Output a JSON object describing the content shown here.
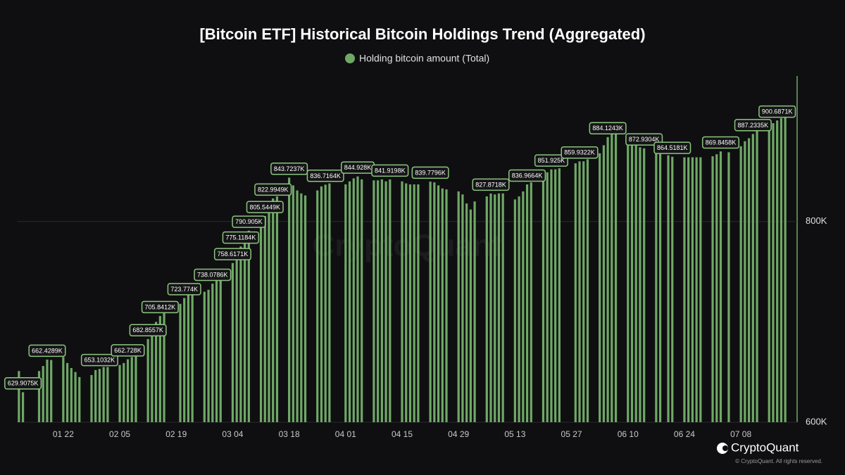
{
  "chart_data": {
    "type": "bar",
    "title": "[Bitcoin ETF] Historical Bitcoin Holdings Trend (Aggregated)",
    "branding": {
      "logo": "CryptoQuant",
      "copyright": "© CryptoQuant. All rights reserved."
    },
    "categories": [
      null,
      null,
      null,
      null,
      null,
      null,
      null,
      null,
      null,
      null,
      null,
      "01 22",
      null,
      null,
      null,
      null,
      null,
      null,
      null,
      null,
      null,
      null,
      null,
      null,
      null,
      "02 05",
      null,
      null,
      null,
      null,
      null,
      null,
      null,
      null,
      null,
      null,
      null,
      null,
      null,
      "02 19",
      null,
      null,
      null,
      null,
      null,
      null,
      null,
      null,
      null,
      null,
      null,
      null,
      null,
      "03 04",
      null,
      null,
      null,
      null,
      null,
      null,
      null,
      null,
      null,
      null,
      null,
      null,
      null,
      "03 18",
      null,
      null,
      null,
      null,
      null,
      null,
      null,
      null,
      null,
      null,
      null,
      null,
      null,
      "04 01",
      null,
      null,
      null,
      null,
      null,
      null,
      null,
      null,
      null,
      null,
      null,
      null,
      null,
      "04 15",
      null,
      null,
      null,
      null,
      null,
      null,
      null,
      null,
      null,
      null,
      null,
      null,
      null,
      "04 29",
      null,
      null,
      null,
      null,
      null,
      null,
      null,
      null,
      null,
      null,
      null,
      null,
      null,
      "05 13",
      null,
      null,
      null,
      null,
      null,
      null,
      null,
      null,
      null,
      null,
      null,
      null,
      null,
      "05 27",
      null,
      null,
      null,
      null,
      null,
      null,
      null,
      null,
      null,
      null,
      null,
      null,
      null,
      "06 10",
      null,
      null,
      null,
      null,
      null,
      null,
      null,
      null,
      null,
      null,
      null,
      null,
      null,
      "06 24",
      null,
      null,
      null,
      null,
      null,
      null,
      null,
      null,
      null,
      null,
      null,
      null,
      null,
      "07 08",
      null,
      null,
      null,
      null,
      null,
      null,
      null,
      null,
      null,
      null,
      null
    ],
    "series": [
      {
        "name": "Holding bitcoin amount (Total)",
        "color": "#6fa866",
        "values": [
          651000,
          629907.5,
          null,
          null,
          null,
          651000,
          656000,
          662428.9,
          662000,
          null,
          null,
          665000,
          659000,
          654000,
          650000,
          645000,
          null,
          null,
          647000,
          652000,
          653103.2,
          655000,
          655000,
          null,
          null,
          657000,
          659000,
          662728,
          665000,
          672000,
          null,
          null,
          682855.7,
          690000,
          700000,
          705841.2,
          712000,
          null,
          null,
          null,
          718000,
          723774,
          727000,
          730000,
          null,
          null,
          730000,
          732000,
          738078.6,
          745000,
          752000,
          null,
          null,
          758617.1,
          765000,
          775118.4,
          782000,
          790905,
          null,
          null,
          795000,
          805544.9,
          812000,
          822994.9,
          825000,
          null,
          null,
          843723.7,
          836000,
          831000,
          828000,
          826000,
          null,
          null,
          831000,
          835000,
          836716.4,
          838000,
          null,
          null,
          null,
          837000,
          840000,
          843000,
          844928,
          842000,
          null,
          null,
          841000,
          841000,
          842000,
          840000,
          841919.8,
          null,
          null,
          840000,
          838000,
          837000,
          837000,
          837000,
          null,
          null,
          839779.6,
          839000,
          836000,
          833000,
          832000,
          null,
          null,
          830000,
          827000,
          818000,
          812000,
          820000,
          null,
          null,
          825000,
          827871.8,
          827000,
          828000,
          828000,
          null,
          null,
          822000,
          825000,
          830000,
          836966.4,
          839000,
          null,
          null,
          845000,
          849000,
          851925,
          852000,
          853000,
          null,
          null,
          null,
          858000,
          859932.2,
          860000,
          862000,
          null,
          null,
          868000,
          876000,
          884124.3,
          887000,
          887000,
          null,
          null,
          882000,
          878000,
          876000,
          874000,
          872930.4,
          null,
          null,
          872000,
          871000,
          null,
          866000,
          864518.1,
          null,
          null,
          864000,
          864000,
          864000,
          864000,
          864000,
          null,
          null,
          865000,
          867000,
          869845.8,
          null,
          869000,
          null,
          null,
          875000,
          880000,
          883000,
          887233.5,
          890000,
          null,
          null,
          895000,
          898000,
          900687.1,
          903000,
          906000
        ],
        "value_labels": [
          null,
          "629.9075K",
          null,
          null,
          null,
          null,
          null,
          "662.4289K",
          null,
          null,
          null,
          null,
          null,
          null,
          null,
          null,
          null,
          null,
          null,
          null,
          "653.1032K",
          null,
          null,
          null,
          null,
          null,
          null,
          "662.728K",
          null,
          null,
          null,
          null,
          "682.8557K",
          null,
          null,
          "705.8412K",
          null,
          null,
          null,
          null,
          null,
          "723.774K",
          null,
          null,
          null,
          null,
          null,
          null,
          "738.0786K",
          null,
          null,
          null,
          null,
          "758.6171K",
          null,
          "775.1184K",
          null,
          "790.905K",
          null,
          null,
          null,
          "805.5449K",
          null,
          "822.9949K",
          null,
          null,
          null,
          "843.7237K",
          null,
          null,
          null,
          null,
          null,
          null,
          null,
          null,
          "836.7164K",
          null,
          null,
          null,
          null,
          null,
          null,
          null,
          "844.928K",
          null,
          null,
          null,
          null,
          null,
          null,
          null,
          "841.9198K",
          null,
          null,
          null,
          null,
          null,
          null,
          null,
          null,
          null,
          "839.7796K",
          null,
          null,
          null,
          null,
          null,
          null,
          null,
          null,
          null,
          null,
          null,
          null,
          null,
          null,
          "827.8718K",
          null,
          null,
          null,
          null,
          null,
          null,
          null,
          null,
          "836.9664K",
          null,
          null,
          null,
          null,
          null,
          "851.925K",
          null,
          null,
          null,
          null,
          null,
          null,
          "859.9322K",
          null,
          null,
          null,
          null,
          null,
          null,
          "884.1243K",
          null,
          null,
          null,
          null,
          null,
          null,
          null,
          null,
          "872.9304K",
          null,
          null,
          null,
          null,
          null,
          null,
          "864.5181K",
          null,
          null,
          null,
          null,
          null,
          null,
          null,
          null,
          null,
          null,
          null,
          "869.8458K",
          null,
          null,
          null,
          null,
          null,
          null,
          null,
          "887.2335K",
          null,
          null,
          null,
          null,
          null,
          "900.6871K",
          null,
          null
        ]
      }
    ],
    "ylim": [
      600000,
      945000
    ],
    "yticks": [
      {
        "value": 600000,
        "label": "600K"
      },
      {
        "value": 800000,
        "label": "800K"
      }
    ],
    "grid": true,
    "legend": "top"
  }
}
